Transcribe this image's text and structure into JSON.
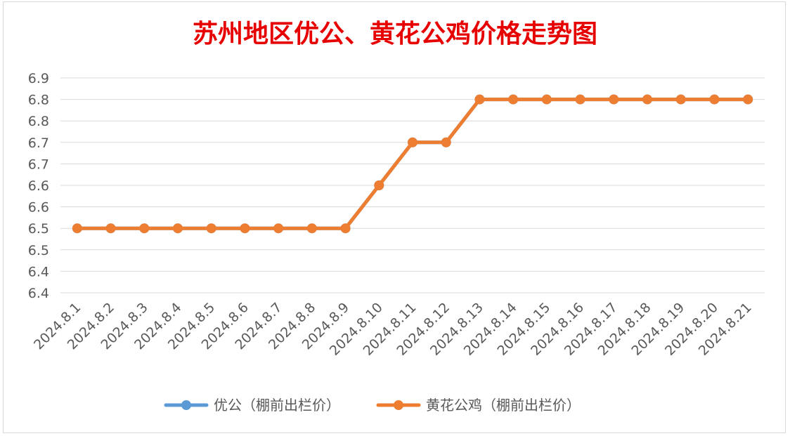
{
  "chart_data": {
    "type": "line",
    "title": "苏州地区优公、黄花公鸡价格走势图",
    "categories": [
      "2024.8.1",
      "2024.8.2",
      "2024.8.3",
      "2024.8.4",
      "2024.8.5",
      "2024.8.6",
      "2024.8.7",
      "2024.8.8",
      "2024.8.9",
      "2024.8.10",
      "2024.8.11",
      "2024.8.12",
      "2024.8.13",
      "2024.8.14",
      "2024.8.15",
      "2024.8.16",
      "2024.8.17",
      "2024.8.18",
      "2024.8.19",
      "2024.8.20",
      "2024.8.21"
    ],
    "y_tick_labels": [
      "6.4",
      "6.4",
      "6.5",
      "6.5",
      "6.6",
      "6.6",
      "6.7",
      "6.7",
      "6.8",
      "6.8",
      "6.9"
    ],
    "ylim": [
      6.35,
      6.85
    ],
    "grid": true,
    "legend_position": "bottom",
    "series": [
      {
        "name": "优公（棚前出栏价）",
        "color": "#5b9bd5",
        "values": [
          6.5,
          6.5,
          6.5,
          6.5,
          6.5,
          6.5,
          6.5,
          6.5,
          6.5,
          6.6,
          6.7,
          6.7,
          6.8,
          6.8,
          6.8,
          6.8,
          6.8,
          6.8,
          6.8,
          6.8,
          6.8
        ]
      },
      {
        "name": "黄花公鸡（棚前出栏价）",
        "color": "#ed7d31",
        "values": [
          6.5,
          6.5,
          6.5,
          6.5,
          6.5,
          6.5,
          6.5,
          6.5,
          6.5,
          6.6,
          6.7,
          6.7,
          6.8,
          6.8,
          6.8,
          6.8,
          6.8,
          6.8,
          6.8,
          6.8,
          6.8
        ]
      }
    ]
  }
}
